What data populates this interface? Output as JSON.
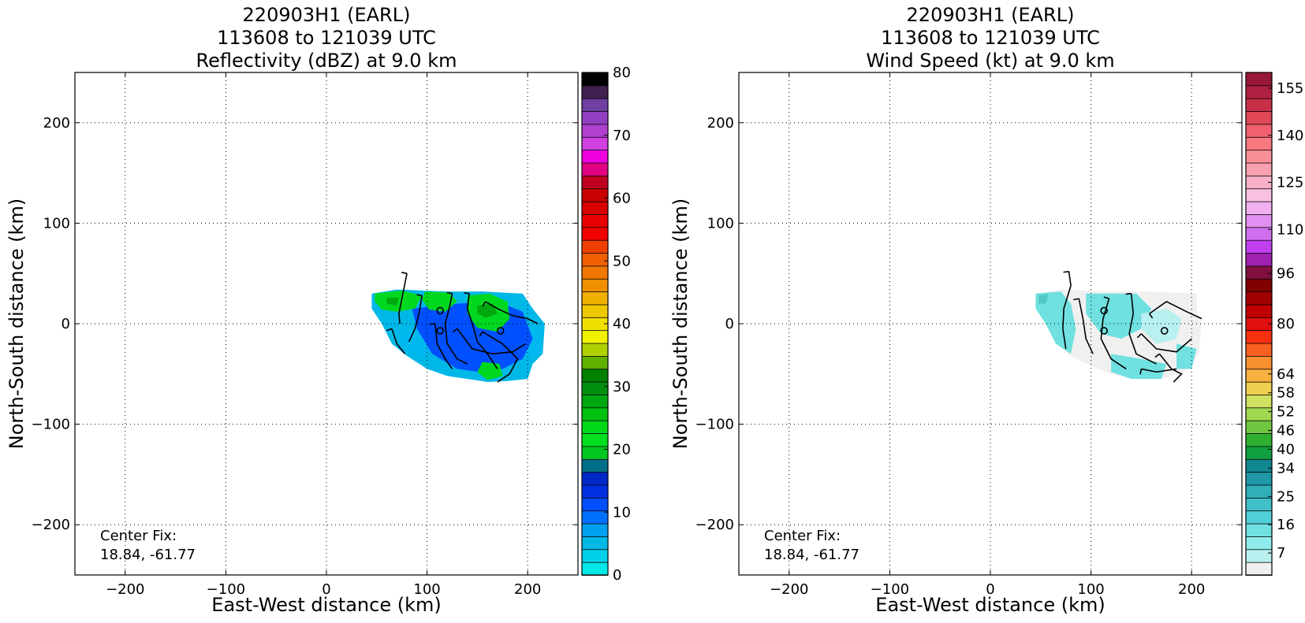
{
  "chart_data": [
    {
      "type": "heatmap",
      "title_lines": [
        "220903H1 (EARL)",
        "113608 to 121039 UTC",
        "Reflectivity (dBZ) at 9.0 km"
      ],
      "xlabel": "East-West distance (km)",
      "ylabel": "North-South distance (km)",
      "xlim": [
        -250,
        250
      ],
      "ylim": [
        -250,
        250
      ],
      "xticks": [
        -200,
        -100,
        0,
        100,
        200
      ],
      "yticks": [
        -200,
        -100,
        0,
        100,
        200
      ],
      "grid": true,
      "annotation": [
        "Center Fix:",
        "18.84, -61.77"
      ],
      "colorbar": {
        "min": 0,
        "max": 80,
        "ticks": [
          0,
          10,
          20,
          30,
          40,
          50,
          60,
          70,
          80
        ],
        "colors": [
          "#00e8e8",
          "#00d0e8",
          "#00b8e8",
          "#00a0f0",
          "#0070ff",
          "#0050ff",
          "#0030e0",
          "#0028c8",
          "#00708a",
          "#00c820",
          "#00e020",
          "#00d818",
          "#00c010",
          "#00a810",
          "#009010",
          "#008000",
          "#60b000",
          "#b0d000",
          "#f0f000",
          "#f0e000",
          "#f0c800",
          "#f0b000",
          "#f09000",
          "#f07800",
          "#f06000",
          "#f04000",
          "#f00000",
          "#e80000",
          "#d80000",
          "#c80000",
          "#c00020",
          "#e00080",
          "#f000e0",
          "#d040e0",
          "#b040d0",
          "#9040c0",
          "#7040a0",
          "#402050",
          "#000000"
        ]
      },
      "storm_region": [
        [
          45,
          30
        ],
        [
          70,
          34
        ],
        [
          120,
          32
        ],
        [
          155,
          32
        ],
        [
          195,
          30
        ],
        [
          205,
          15
        ],
        [
          217,
          0
        ],
        [
          215,
          -30
        ],
        [
          205,
          -40
        ],
        [
          200,
          -55
        ],
        [
          180,
          -57
        ],
        [
          160,
          -58
        ],
        [
          140,
          -55
        ],
        [
          120,
          -52
        ],
        [
          100,
          -45
        ],
        [
          80,
          -32
        ],
        [
          65,
          -20
        ],
        [
          55,
          0
        ],
        [
          45,
          15
        ]
      ],
      "regions": [
        {
          "color": "#00b8f0",
          "points": [
            [
              75,
              -5
            ],
            [
              95,
              -10
            ],
            [
              105,
              -28
            ],
            [
              88,
              -32
            ],
            [
              72,
              -22
            ]
          ]
        },
        {
          "color": "#00b8f0",
          "points": [
            [
              190,
              -12
            ],
            [
              212,
              -8
            ],
            [
              215,
              -28
            ],
            [
              198,
              -32
            ],
            [
              188,
              -22
            ]
          ]
        },
        {
          "color": "#0050ff",
          "points": [
            [
              85,
              15
            ],
            [
              130,
              20
            ],
            [
              170,
              22
            ],
            [
              195,
              12
            ],
            [
              205,
              -15
            ],
            [
              195,
              -35
            ],
            [
              165,
              -50
            ],
            [
              130,
              -45
            ],
            [
              105,
              -30
            ],
            [
              90,
              -5
            ]
          ]
        },
        {
          "color": "#00d820",
          "points": [
            [
              48,
              30
            ],
            [
              75,
              33
            ],
            [
              95,
              28
            ],
            [
              88,
              15
            ],
            [
              70,
              12
            ],
            [
              55,
              14
            ],
            [
              48,
              22
            ]
          ]
        },
        {
          "color": "#00d820",
          "points": [
            [
              98,
              32
            ],
            [
              122,
              31
            ],
            [
              130,
              22
            ],
            [
              118,
              12
            ],
            [
              102,
              14
            ],
            [
              95,
              24
            ]
          ]
        },
        {
          "color": "#00d820",
          "points": [
            [
              140,
              28
            ],
            [
              162,
              30
            ],
            [
              180,
              22
            ],
            [
              182,
              5
            ],
            [
              170,
              -8
            ],
            [
              150,
              -4
            ],
            [
              140,
              10
            ]
          ]
        },
        {
          "color": "#00d820",
          "points": [
            [
              155,
              -38
            ],
            [
              172,
              -40
            ],
            [
              175,
              -52
            ],
            [
              160,
              -56
            ],
            [
              150,
              -48
            ]
          ]
        },
        {
          "color": "#00a810",
          "points": [
            [
              60,
              26
            ],
            [
              72,
              26
            ],
            [
              70,
              18
            ],
            [
              60,
              20
            ]
          ]
        },
        {
          "color": "#00a810",
          "points": [
            [
              150,
              18
            ],
            [
              165,
              20
            ],
            [
              170,
              10
            ],
            [
              158,
              6
            ],
            [
              150,
              10
            ]
          ]
        }
      ],
      "markers": [
        [
          113,
          13
        ],
        [
          113,
          -7
        ],
        [
          173,
          -7
        ]
      ],
      "streamlines": [
        [
          [
            80,
            50
          ],
          [
            77,
            35
          ],
          [
            72,
            10
          ],
          [
            73,
            0
          ]
        ],
        [
          [
            95,
            28
          ],
          [
            92,
            10
          ],
          [
            88,
            -5
          ],
          [
            82,
            -18
          ]
        ],
        [
          [
            125,
            30
          ],
          [
            122,
            15
          ],
          [
            118,
            0
          ],
          [
            120,
            -20
          ],
          [
            130,
            -35
          ],
          [
            140,
            -40
          ]
        ],
        [
          [
            142,
            30
          ],
          [
            140,
            15
          ],
          [
            145,
            0
          ],
          [
            150,
            -18
          ],
          [
            160,
            -30
          ],
          [
            170,
            -45
          ]
        ],
        [
          [
            158,
            22
          ],
          [
            170,
            15
          ],
          [
            185,
            8
          ],
          [
            200,
            5
          ],
          [
            210,
            0
          ]
        ],
        [
          [
            130,
            -5
          ],
          [
            145,
            -25
          ],
          [
            165,
            -30
          ],
          [
            185,
            -28
          ],
          [
            198,
            -20
          ]
        ],
        [
          [
            108,
            0
          ],
          [
            110,
            -20
          ],
          [
            118,
            -35
          ],
          [
            125,
            -45
          ]
        ],
        [
          [
            155,
            -8
          ],
          [
            175,
            -20
          ],
          [
            190,
            -35
          ],
          [
            182,
            -50
          ],
          [
            170,
            -58
          ]
        ],
        [
          [
            65,
            -5
          ],
          [
            70,
            -20
          ],
          [
            78,
            -30
          ]
        ]
      ]
    },
    {
      "type": "heatmap",
      "title_lines": [
        "220903H1 (EARL)",
        "113608 to 121039 UTC",
        "Wind Speed (kt) at 9.0 km"
      ],
      "xlabel": "East-West distance (km)",
      "ylabel": "North-South distance (km)",
      "xlim": [
        -250,
        250
      ],
      "ylim": [
        -250,
        250
      ],
      "xticks": [
        -200,
        -100,
        0,
        100,
        200
      ],
      "yticks": [
        -200,
        -100,
        0,
        100,
        200
      ],
      "grid": true,
      "annotation": [
        "Center Fix:",
        "18.84, -61.77"
      ],
      "colorbar": {
        "min": 0,
        "max": 160,
        "ticks": [
          7,
          16,
          25,
          34,
          40,
          46,
          52,
          58,
          64,
          80,
          96,
          110,
          125,
          140,
          155
        ],
        "colors": [
          "#f0f0f0",
          "#b8f0f0",
          "#90ecec",
          "#70e0e0",
          "#50d0d8",
          "#40c0c8",
          "#30b0b8",
          "#2098a8",
          "#108890",
          "#10a040",
          "#30b030",
          "#70c840",
          "#a0d850",
          "#d0e060",
          "#f0d050",
          "#f8b040",
          "#f89030",
          "#f86020",
          "#f83010",
          "#e01010",
          "#c00000",
          "#a00000",
          "#800000",
          "#801040",
          "#a020b0",
          "#c040f0",
          "#d070f0",
          "#e090f0",
          "#f0b0f0",
          "#f8c0e0",
          "#f8b0c8",
          "#f8a0b0",
          "#f89098",
          "#f87880",
          "#f06070",
          "#e04858",
          "#c83048",
          "#b02040",
          "#981838"
        ]
      },
      "storm_region": [
        [
          45,
          30
        ],
        [
          70,
          34
        ],
        [
          120,
          32
        ],
        [
          155,
          32
        ],
        [
          205,
          30
        ],
        [
          205,
          15
        ],
        [
          210,
          0
        ],
        [
          207,
          -30
        ],
        [
          200,
          -40
        ],
        [
          190,
          -50
        ],
        [
          170,
          -55
        ],
        [
          140,
          -55
        ],
        [
          120,
          -50
        ],
        [
          100,
          -42
        ],
        [
          80,
          -32
        ],
        [
          65,
          -20
        ],
        [
          55,
          0
        ],
        [
          45,
          15
        ]
      ],
      "regions": [
        {
          "color": "#70e0e0",
          "points": [
            [
              45,
              30
            ],
            [
              70,
              32
            ],
            [
              80,
              20
            ],
            [
              85,
              -5
            ],
            [
              80,
              -30
            ],
            [
              65,
              -20
            ],
            [
              55,
              0
            ],
            [
              45,
              15
            ]
          ]
        },
        {
          "color": "#70e0e0",
          "points": [
            [
              95,
              30
            ],
            [
              145,
              30
            ],
            [
              160,
              15
            ],
            [
              150,
              -5
            ],
            [
              130,
              -15
            ],
            [
              110,
              -10
            ],
            [
              95,
              10
            ]
          ]
        },
        {
          "color": "#70e0e0",
          "points": [
            [
              120,
              -30
            ],
            [
              150,
              -35
            ],
            [
              175,
              -40
            ],
            [
              170,
              -55
            ],
            [
              140,
              -55
            ],
            [
              120,
              -48
            ]
          ]
        },
        {
          "color": "#70e0e0",
          "points": [
            [
              185,
              -20
            ],
            [
              205,
              -25
            ],
            [
              200,
              -45
            ],
            [
              185,
              -45
            ]
          ]
        },
        {
          "color": "#b8f0f0",
          "points": [
            [
              150,
              10
            ],
            [
              175,
              15
            ],
            [
              190,
              5
            ],
            [
              185,
              -15
            ],
            [
              165,
              -20
            ],
            [
              150,
              -5
            ]
          ]
        },
        {
          "color": "#50c8c8",
          "points": [
            [
              48,
              28
            ],
            [
              58,
              30
            ],
            [
              55,
              20
            ],
            [
              48,
              20
            ]
          ]
        }
      ],
      "markers": [
        [
          113,
          13
        ],
        [
          113,
          -7
        ],
        [
          173,
          -7
        ]
      ],
      "streamlines": [
        [
          [
            78,
            52
          ],
          [
            80,
            38
          ],
          [
            73,
            15
          ],
          [
            72,
            -5
          ],
          [
            75,
            -25
          ]
        ],
        [
          [
            88,
            25
          ],
          [
            92,
            5
          ],
          [
            95,
            -15
          ],
          [
            102,
            -30
          ]
        ],
        [
          [
            118,
            25
          ],
          [
            112,
            5
          ],
          [
            110,
            -15
          ],
          [
            120,
            -35
          ],
          [
            135,
            -45
          ]
        ],
        [
          [
            140,
            30
          ],
          [
            142,
            10
          ],
          [
            138,
            -10
          ],
          [
            145,
            -30
          ],
          [
            165,
            -40
          ]
        ],
        [
          [
            158,
            10
          ],
          [
            175,
            22
          ],
          [
            195,
            12
          ],
          [
            210,
            5
          ]
        ],
        [
          [
            150,
            -10
          ],
          [
            165,
            -25
          ],
          [
            185,
            -28
          ],
          [
            200,
            -15
          ]
        ],
        [
          [
            168,
            -30
          ],
          [
            180,
            -45
          ],
          [
            190,
            -50
          ],
          [
            182,
            -58
          ]
        ],
        [
          [
            150,
            -45
          ],
          [
            165,
            -48
          ],
          [
            185,
            -45
          ]
        ]
      ]
    }
  ]
}
